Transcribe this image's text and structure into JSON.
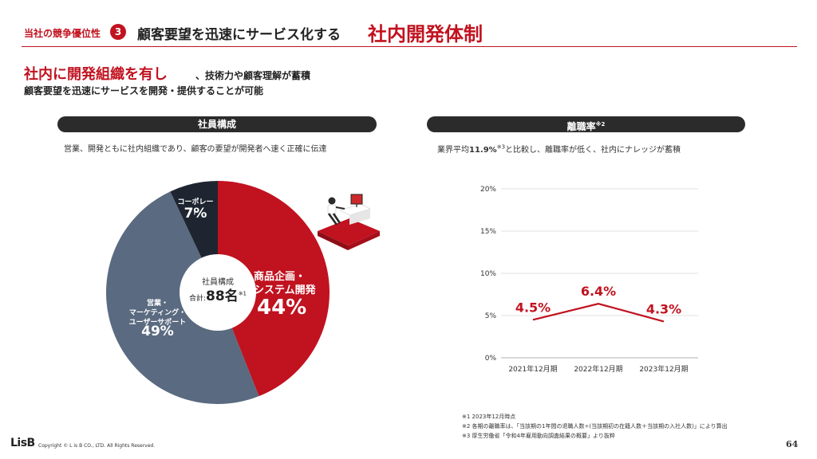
{
  "header": {
    "section_label": "当社の競争優位性",
    "section_number": "3",
    "title_main": "顧客要望を迅速にサービス化する",
    "title_accent": "社内開発体制"
  },
  "headline": {
    "lead_red": "社内に開発組織を有し",
    "lead_black": "、技術力や顧客理解が蓄積",
    "sub": "顧客要望を迅速にサービスを開発・提供することが可能"
  },
  "left_panel": {
    "title": "社員構成",
    "description": "営業、開発ともに社内組織であり、顧客の要望が開発者へ速く正確に伝達",
    "center_title": "社員構成",
    "center_total_prefix": "合計:",
    "center_total_value": "88名",
    "center_total_note": "※1",
    "slices": [
      {
        "name_line1": "商品企画・",
        "name_line2": "システム開発",
        "value_label": "44%",
        "value": 44,
        "color": "#c1121f"
      },
      {
        "name_line1": "営業・",
        "name_line2": "マーケティング・",
        "name_line3": "ユーザーサポート",
        "value_label": "49%",
        "value": 49,
        "color": "#5a6a80"
      },
      {
        "name_line1": "コーポレート",
        "value_label": "7%",
        "value": 7,
        "color": "#1e2530"
      }
    ]
  },
  "right_panel": {
    "title": "離職率",
    "title_note": "※2",
    "description_before": "業界平均",
    "description_value": "11.9%",
    "description_note": "※3",
    "description_after": "と比較し、離職率が低く、社内にナレッジが蓄積"
  },
  "chart_data": {
    "type": "line",
    "categories": [
      "2021年12月期",
      "2022年12月期",
      "2023年12月期"
    ],
    "series": [
      {
        "values": [
          4.5,
          6.4,
          4.3
        ],
        "labels": [
          "4.5%",
          "6.4%",
          "4.3%"
        ],
        "color": "#c1121f"
      }
    ],
    "y_ticks": [
      "0%",
      "5%",
      "10%",
      "15%",
      "20%"
    ],
    "ylim": [
      0,
      20
    ],
    "grid": true
  },
  "footnotes": [
    "※1 2023年12月時点",
    "※2 各期の離職率は、「当該期の1年間の退職人数÷(当該期初の在籍人数＋当該期の入社人数)」により算出",
    "※3 厚生労働省「令和4年雇用動向調査結果の概要」より抜粋"
  ],
  "footer": {
    "logo": "LisB",
    "copyright": "Copyright © L is B CO., LTD. All Rights Reserved.",
    "page_number": "64"
  }
}
